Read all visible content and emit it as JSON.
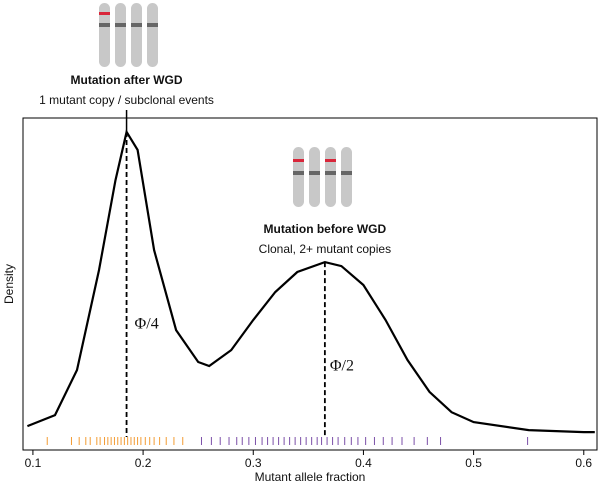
{
  "chart_data": {
    "type": "density",
    "xlabel": "Mutant allele fraction",
    "ylabel": "Density",
    "xlim": [
      0.091,
      0.612
    ],
    "xticks": [
      0.1,
      0.2,
      0.3,
      0.4,
      0.5,
      0.6
    ],
    "ylim": [
      0,
      10
    ],
    "color": "#000000",
    "x": [
      0.095,
      0.12,
      0.14,
      0.16,
      0.175,
      0.185,
      0.195,
      0.21,
      0.23,
      0.25,
      0.26,
      0.28,
      0.3,
      0.32,
      0.34,
      0.365,
      0.38,
      0.4,
      0.42,
      0.44,
      0.46,
      0.48,
      0.5,
      0.55,
      0.6,
      0.61
    ],
    "values": [
      0.72,
      1.05,
      2.41,
      5.42,
      8.13,
      9.58,
      9.04,
      6.02,
      3.61,
      2.65,
      2.53,
      3.01,
      3.92,
      4.76,
      5.36,
      5.66,
      5.54,
      4.97,
      3.92,
      2.71,
      1.75,
      1.14,
      0.84,
      0.6,
      0.54,
      0.54
    ],
    "rug": [
      {
        "color": "#f39c34",
        "x": [
          0.113,
          0.135,
          0.142,
          0.148,
          0.152,
          0.158,
          0.161,
          0.165,
          0.168,
          0.171,
          0.174,
          0.177,
          0.18,
          0.183,
          0.186,
          0.189,
          0.192,
          0.195,
          0.198,
          0.202,
          0.206,
          0.21,
          0.215,
          0.221,
          0.228,
          0.236
        ]
      },
      {
        "color": "#7b4fa8",
        "x": [
          0.253,
          0.262,
          0.27,
          0.278,
          0.285,
          0.29,
          0.296,
          0.302,
          0.308,
          0.313,
          0.318,
          0.323,
          0.328,
          0.333,
          0.338,
          0.343,
          0.348,
          0.353,
          0.358,
          0.362,
          0.367,
          0.372,
          0.377,
          0.383,
          0.389,
          0.395,
          0.402,
          0.41,
          0.418,
          0.426,
          0.435,
          0.446,
          0.458,
          0.47,
          0.549
        ]
      }
    ],
    "annotations": [
      {
        "x": 0.185,
        "y": 9.58,
        "label": "Φ/4",
        "title": "Mutation after WGD",
        "subtitle": "1 mutant copy / subclonal events"
      },
      {
        "x": 0.365,
        "y": 5.66,
        "label": "Φ/2",
        "title": "Mutation before WGD",
        "subtitle": "Clonal, 2+ mutant copies"
      }
    ]
  }
}
